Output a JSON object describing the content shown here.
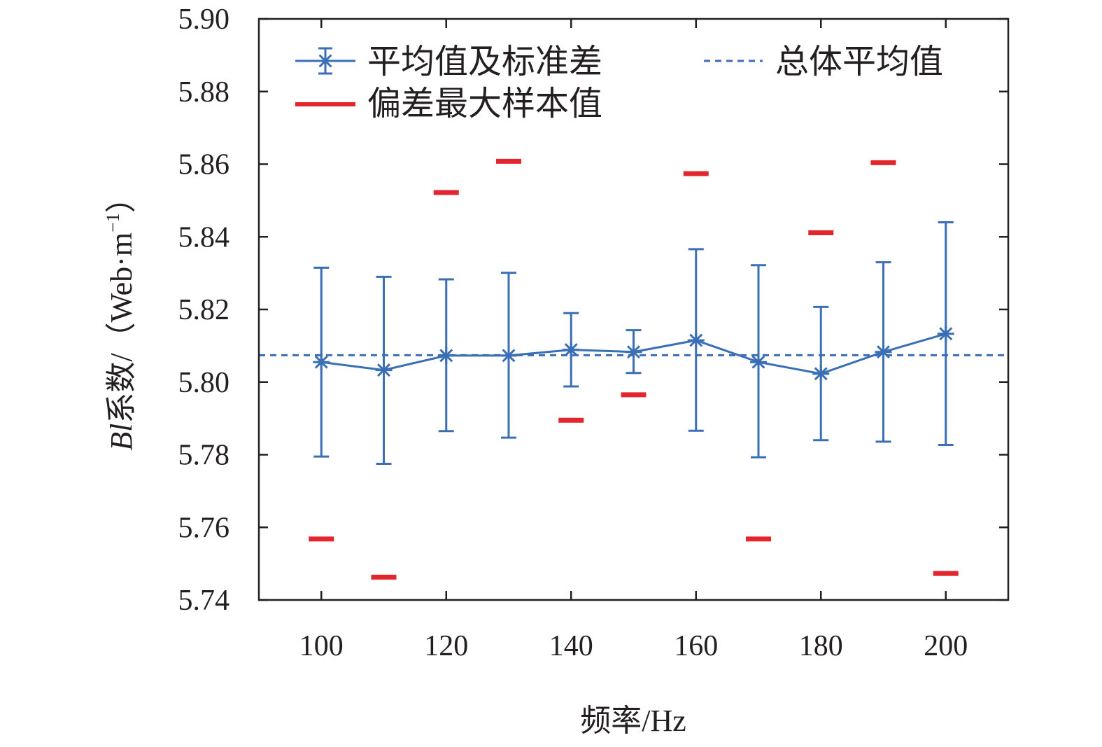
{
  "chart_data": {
    "type": "line",
    "xlabel": "频率/Hz",
    "ylabel_main": "Bl",
    "ylabel_suffix": "系数/（Web·m",
    "ylabel_sup": "−1",
    "ylabel_close": "）",
    "xlim": [
      90,
      210
    ],
    "ylim": [
      5.74,
      5.9
    ],
    "x_ticks": [
      100,
      120,
      140,
      160,
      180,
      200
    ],
    "y_ticks": [
      5.74,
      5.76,
      5.78,
      5.8,
      5.82,
      5.84,
      5.86,
      5.88,
      5.9
    ],
    "y_tick_labels": [
      "5.74",
      "5.76",
      "5.78",
      "5.80",
      "5.82",
      "5.84",
      "5.86",
      "5.88",
      "5.90"
    ],
    "x_tick_labels": [
      "100",
      "120",
      "140",
      "160",
      "180",
      "200"
    ],
    "grid": false,
    "legend_position": "top",
    "series": [
      {
        "name": "平均值及标准差",
        "color": "#3a6fb5",
        "marker": "asterisk",
        "x": [
          100,
          110,
          120,
          130,
          140,
          150,
          160,
          170,
          180,
          190,
          200
        ],
        "y": [
          5.8055,
          5.8033,
          5.8073,
          5.8073,
          5.8089,
          5.8083,
          5.8115,
          5.8055,
          5.8023,
          5.8083,
          5.8133
        ],
        "err_lower": [
          5.7795,
          5.7775,
          5.7865,
          5.7847,
          5.7988,
          5.8025,
          5.7866,
          5.7793,
          5.784,
          5.7836,
          5.7827
        ],
        "err_upper": [
          5.8315,
          5.829,
          5.8283,
          5.8301,
          5.819,
          5.8143,
          5.8366,
          5.8322,
          5.8207,
          5.833,
          5.844
        ]
      },
      {
        "name": "偏差最大样本值",
        "color": "#e3262e",
        "marker": "dash",
        "x": [
          100,
          110,
          120,
          130,
          140,
          150,
          160,
          170,
          180,
          190,
          200
        ],
        "y": [
          5.7568,
          5.7463,
          5.8522,
          5.8608,
          5.7895,
          5.7965,
          5.8574,
          5.7568,
          5.8411,
          5.8604,
          5.7473
        ]
      },
      {
        "name": "总体平均值",
        "color": "#3a6fb5",
        "style": "dashed",
        "value": 5.8074
      }
    ]
  }
}
